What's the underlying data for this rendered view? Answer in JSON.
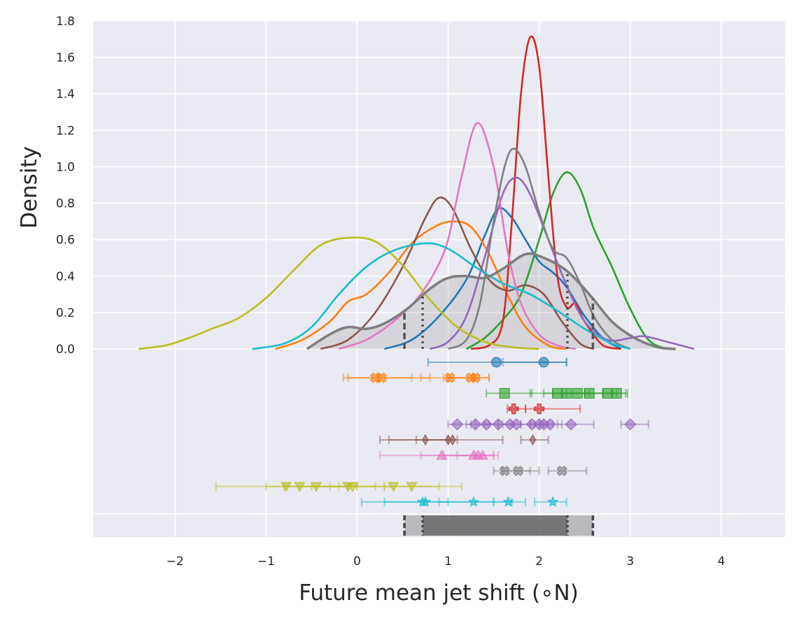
{
  "chart_data": {
    "type": "density",
    "xlabel": "Future mean jet shift (∘N)",
    "ylabel": "Density",
    "xlim": [
      -2.9,
      4.7
    ],
    "ylim": [
      0,
      1.8
    ],
    "xticks": [
      -2,
      -1,
      0,
      1,
      2,
      3,
      4
    ],
    "xtick_labels": [
      "−2",
      "−1",
      "0",
      "1",
      "2",
      "3",
      "4"
    ],
    "yticks": [
      0.0,
      0.2,
      0.4,
      0.6,
      0.8,
      1.0,
      1.2,
      1.4,
      1.6,
      1.8
    ],
    "ytick_labels": [
      "0.0",
      "0.2",
      "0.4",
      "0.6",
      "0.8",
      "1.0",
      "1.2",
      "1.4",
      "1.6",
      "1.8"
    ],
    "grid": true,
    "series": [
      {
        "color": "#1f77b4",
        "marker": "circle",
        "points": [
          [
            1.53,
            0.78,
            2.3
          ],
          [
            2.05,
            1.6,
            2.3
          ]
        ],
        "curve": [
          [
            0.3,
            0
          ],
          [
            0.6,
            0.05
          ],
          [
            0.9,
            0.18
          ],
          [
            1.2,
            0.38
          ],
          [
            1.4,
            0.62
          ],
          [
            1.55,
            0.77
          ],
          [
            1.7,
            0.72
          ],
          [
            1.85,
            0.6
          ],
          [
            2.0,
            0.48
          ],
          [
            2.15,
            0.42
          ],
          [
            2.3,
            0.34
          ],
          [
            2.5,
            0.18
          ],
          [
            2.7,
            0.06
          ],
          [
            2.9,
            0
          ]
        ]
      },
      {
        "color": "#ff7f0e",
        "marker": "x",
        "points": [
          [
            0.2,
            -0.15,
            0.6
          ],
          [
            0.27,
            -0.1,
            0.8
          ],
          [
            1.02,
            0.7,
            1.3
          ],
          [
            1.25,
            0.95,
            1.45
          ],
          [
            1.3,
            1.0,
            1.45
          ]
        ],
        "curve": [
          [
            -0.9,
            0
          ],
          [
            -0.6,
            0.05
          ],
          [
            -0.3,
            0.15
          ],
          [
            -0.1,
            0.26
          ],
          [
            0.1,
            0.3
          ],
          [
            0.35,
            0.42
          ],
          [
            0.6,
            0.58
          ],
          [
            0.85,
            0.67
          ],
          [
            1.05,
            0.7
          ],
          [
            1.25,
            0.67
          ],
          [
            1.45,
            0.52
          ],
          [
            1.65,
            0.3
          ],
          [
            1.85,
            0.12
          ],
          [
            2.1,
            0.02
          ],
          [
            2.3,
            0
          ]
        ]
      },
      {
        "color": "#2ca02c",
        "marker": "square",
        "points": [
          [
            1.62,
            1.42,
            1.92
          ],
          [
            2.2,
            1.9,
            2.5
          ],
          [
            2.3,
            2.05,
            2.55
          ],
          [
            2.42,
            2.15,
            2.7
          ],
          [
            2.55,
            2.3,
            2.85
          ],
          [
            2.75,
            2.5,
            2.95
          ],
          [
            2.85,
            2.7,
            2.97
          ]
        ],
        "curve": [
          [
            1.2,
            0
          ],
          [
            1.4,
            0.06
          ],
          [
            1.6,
            0.16
          ],
          [
            1.8,
            0.3
          ],
          [
            2.0,
            0.6
          ],
          [
            2.15,
            0.85
          ],
          [
            2.3,
            0.97
          ],
          [
            2.45,
            0.88
          ],
          [
            2.6,
            0.66
          ],
          [
            2.8,
            0.45
          ],
          [
            3.0,
            0.22
          ],
          [
            3.2,
            0.05
          ],
          [
            3.4,
            0
          ]
        ]
      },
      {
        "color": "#d62728",
        "marker": "plus",
        "points": [
          [
            1.72,
            1.65,
            1.85
          ],
          [
            2.0,
            1.85,
            2.45
          ]
        ],
        "curve": [
          [
            1.25,
            0
          ],
          [
            1.45,
            0.02
          ],
          [
            1.6,
            0.15
          ],
          [
            1.7,
            0.7
          ],
          [
            1.8,
            1.4
          ],
          [
            1.9,
            1.71
          ],
          [
            2.0,
            1.55
          ],
          [
            2.1,
            0.95
          ],
          [
            2.2,
            0.4
          ],
          [
            2.3,
            0.23
          ],
          [
            2.4,
            0.25
          ],
          [
            2.5,
            0.15
          ],
          [
            2.7,
            0.02
          ],
          [
            2.9,
            0
          ]
        ]
      },
      {
        "color": "#9467bd",
        "marker": "diamond",
        "points": [
          [
            1.1,
            1.0,
            1.25
          ],
          [
            1.3,
            1.2,
            1.45
          ],
          [
            1.42,
            1.3,
            1.55
          ],
          [
            1.55,
            1.4,
            1.7
          ],
          [
            1.68,
            1.55,
            1.8
          ],
          [
            1.75,
            1.6,
            1.9
          ],
          [
            1.92,
            1.8,
            2.05
          ],
          [
            2.0,
            1.9,
            2.1
          ],
          [
            2.05,
            1.95,
            2.15
          ],
          [
            2.12,
            2.0,
            2.25
          ],
          [
            2.35,
            2.2,
            2.6
          ],
          [
            3.0,
            2.9,
            3.2
          ]
        ],
        "curve": [
          [
            0.8,
            0
          ],
          [
            1.0,
            0.04
          ],
          [
            1.2,
            0.18
          ],
          [
            1.4,
            0.5
          ],
          [
            1.6,
            0.85
          ],
          [
            1.75,
            0.94
          ],
          [
            1.9,
            0.85
          ],
          [
            2.1,
            0.6
          ],
          [
            2.3,
            0.35
          ],
          [
            2.5,
            0.15
          ],
          [
            2.75,
            0.05
          ],
          [
            3.0,
            0.06
          ],
          [
            3.15,
            0.07
          ],
          [
            3.4,
            0.04
          ],
          [
            3.7,
            0
          ]
        ]
      },
      {
        "color": "#8c564b",
        "marker": "thin_diamond",
        "points": [
          [
            0.75,
            0.25,
            1.0
          ],
          [
            1.0,
            0.35,
            1.6
          ],
          [
            1.05,
            0.65,
            1.1
          ],
          [
            1.93,
            1.8,
            2.1
          ]
        ],
        "curve": [
          [
            -0.4,
            0
          ],
          [
            -0.1,
            0.05
          ],
          [
            0.2,
            0.2
          ],
          [
            0.5,
            0.45
          ],
          [
            0.75,
            0.72
          ],
          [
            0.9,
            0.83
          ],
          [
            1.05,
            0.77
          ],
          [
            1.25,
            0.55
          ],
          [
            1.45,
            0.38
          ],
          [
            1.65,
            0.32
          ],
          [
            1.85,
            0.35
          ],
          [
            2.05,
            0.3
          ],
          [
            2.25,
            0.15
          ],
          [
            2.45,
            0.03
          ],
          [
            2.6,
            0
          ]
        ]
      },
      {
        "color": "#e377c2",
        "marker": "triangle-up",
        "points": [
          [
            0.93,
            0.25,
            1.3
          ],
          [
            1.28,
            0.7,
            1.5
          ],
          [
            1.33,
            0.95,
            1.55
          ],
          [
            1.38,
            1.1,
            1.5
          ]
        ],
        "curve": [
          [
            -0.2,
            0
          ],
          [
            0.1,
            0.05
          ],
          [
            0.4,
            0.15
          ],
          [
            0.65,
            0.27
          ],
          [
            0.85,
            0.42
          ],
          [
            1.0,
            0.6
          ],
          [
            1.15,
            0.95
          ],
          [
            1.32,
            1.24
          ],
          [
            1.5,
            1.0
          ],
          [
            1.65,
            0.55
          ],
          [
            1.8,
            0.25
          ],
          [
            2.0,
            0.08
          ],
          [
            2.2,
            0.02
          ],
          [
            2.4,
            0
          ]
        ]
      },
      {
        "color": "#7f7f7f",
        "marker": "x",
        "points": [
          [
            1.62,
            1.5,
            1.9
          ],
          [
            1.77,
            1.6,
            2.0
          ],
          [
            2.25,
            2.1,
            2.52
          ]
        ],
        "curve": [
          [
            1.0,
            0
          ],
          [
            1.2,
            0.05
          ],
          [
            1.35,
            0.25
          ],
          [
            1.5,
            0.7
          ],
          [
            1.62,
            1.0
          ],
          [
            1.72,
            1.1
          ],
          [
            1.85,
            1.0
          ],
          [
            2.0,
            0.75
          ],
          [
            2.15,
            0.55
          ],
          [
            2.3,
            0.5
          ],
          [
            2.45,
            0.36
          ],
          [
            2.6,
            0.18
          ],
          [
            2.8,
            0.05
          ],
          [
            3.0,
            0
          ]
        ]
      },
      {
        "color": "#bcbd22",
        "marker": "triangle-down",
        "points": [
          [
            -0.78,
            -1.55,
            -0.2
          ],
          [
            -0.63,
            -1.0,
            0.0
          ],
          [
            -0.45,
            -0.8,
            -0.1
          ],
          [
            -0.1,
            -0.5,
            0.3
          ],
          [
            -0.05,
            -0.3,
            0.2
          ],
          [
            0.4,
            0.0,
            0.9
          ],
          [
            0.6,
            0.3,
            1.15
          ]
        ],
        "curve": [
          [
            -2.4,
            0
          ],
          [
            -2.1,
            0.02
          ],
          [
            -1.85,
            0.06
          ],
          [
            -1.6,
            0.11
          ],
          [
            -1.3,
            0.17
          ],
          [
            -1.0,
            0.28
          ],
          [
            -0.7,
            0.43
          ],
          [
            -0.4,
            0.57
          ],
          [
            -0.1,
            0.61
          ],
          [
            0.2,
            0.59
          ],
          [
            0.5,
            0.46
          ],
          [
            0.8,
            0.27
          ],
          [
            1.1,
            0.12
          ],
          [
            1.4,
            0.04
          ],
          [
            1.7,
            0.01
          ],
          [
            2.0,
            0
          ]
        ]
      },
      {
        "color": "#17becf",
        "marker": "star",
        "points": [
          [
            0.72,
            0.3,
            1.0
          ],
          [
            0.75,
            0.05,
            1.5
          ],
          [
            1.28,
            0.9,
            1.7
          ],
          [
            1.66,
            1.5,
            1.85
          ],
          [
            2.15,
            1.95,
            2.3
          ]
        ],
        "curve": [
          [
            -1.15,
            0
          ],
          [
            -0.8,
            0.03
          ],
          [
            -0.5,
            0.12
          ],
          [
            -0.2,
            0.3
          ],
          [
            0.1,
            0.45
          ],
          [
            0.4,
            0.54
          ],
          [
            0.75,
            0.58
          ],
          [
            1.0,
            0.55
          ],
          [
            1.3,
            0.45
          ],
          [
            1.6,
            0.36
          ],
          [
            1.9,
            0.3
          ],
          [
            2.2,
            0.21
          ],
          [
            2.5,
            0.11
          ],
          [
            2.8,
            0.03
          ],
          [
            3.0,
            0
          ]
        ]
      }
    ],
    "combined": {
      "color": "#7f7f7f",
      "curve": [
        [
          -0.55,
          0
        ],
        [
          -0.3,
          0.08
        ],
        [
          -0.1,
          0.12
        ],
        [
          0.1,
          0.11
        ],
        [
          0.3,
          0.14
        ],
        [
          0.55,
          0.22
        ],
        [
          0.8,
          0.33
        ],
        [
          1.0,
          0.39
        ],
        [
          1.2,
          0.4
        ],
        [
          1.4,
          0.39
        ],
        [
          1.6,
          0.44
        ],
        [
          1.85,
          0.52
        ],
        [
          2.05,
          0.5
        ],
        [
          2.3,
          0.43
        ],
        [
          2.55,
          0.3
        ],
        [
          2.8,
          0.15
        ],
        [
          3.05,
          0.06
        ],
        [
          3.3,
          0.01
        ],
        [
          3.5,
          0
        ]
      ],
      "outer_range": [
        0.52,
        2.59
      ],
      "inner_range": [
        0.72,
        2.31
      ]
    }
  }
}
